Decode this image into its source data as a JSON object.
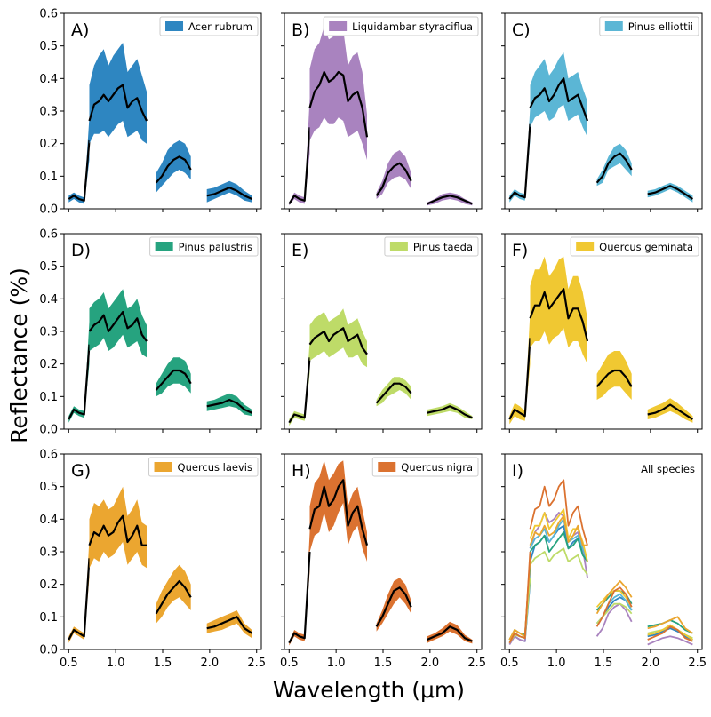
{
  "figure": {
    "xlabel": "Wavelength (μm)",
    "ylabel": "Reflectance (%)"
  },
  "chart_data": {
    "type": "area",
    "xlim": [
      0.45,
      2.55
    ],
    "ylim": [
      0,
      0.6
    ],
    "xticks": [
      0.5,
      1.0,
      1.5,
      2.0,
      2.5
    ],
    "xtick_labels": [
      "0.5",
      "1.0",
      "1.5",
      "2.0",
      "2.5"
    ],
    "yticks": [
      0.0,
      0.1,
      0.2,
      0.3,
      0.4,
      0.5,
      0.6
    ],
    "ytick_labels": [
      "0.0",
      "0.1",
      "0.2",
      "0.3",
      "0.4",
      "0.5",
      "0.6"
    ],
    "legend_placement": "upper-right",
    "mean_line_color": "#000000",
    "segments": [
      [
        0.5,
        0.72
      ],
      [
        0.72,
        1.33
      ],
      [
        1.43,
        1.8
      ],
      [
        1.97,
        2.45
      ]
    ],
    "panels": [
      {
        "label": "A)",
        "name": "Acer rubrum",
        "color": "#2e86c1",
        "mean": [
          0.03,
          0.04,
          0.03,
          0.025,
          0.21,
          0.27,
          0.32,
          0.33,
          0.35,
          0.33,
          0.35,
          0.37,
          0.38,
          0.31,
          0.33,
          0.34,
          0.3,
          0.27,
          0.08,
          0.1,
          0.13,
          0.15,
          0.16,
          0.15,
          0.12,
          0.04,
          0.045,
          0.055,
          0.065,
          0.055,
          0.04,
          0.03
        ],
        "upper": [
          0.04,
          0.05,
          0.04,
          0.035,
          0.28,
          0.38,
          0.44,
          0.47,
          0.49,
          0.44,
          0.47,
          0.49,
          0.51,
          0.42,
          0.44,
          0.46,
          0.41,
          0.36,
          0.11,
          0.14,
          0.18,
          0.2,
          0.21,
          0.2,
          0.16,
          0.06,
          0.065,
          0.075,
          0.085,
          0.075,
          0.055,
          0.04
        ],
        "lower": [
          0.02,
          0.03,
          0.02,
          0.015,
          0.15,
          0.2,
          0.23,
          0.23,
          0.24,
          0.22,
          0.24,
          0.26,
          0.27,
          0.22,
          0.23,
          0.24,
          0.21,
          0.2,
          0.05,
          0.07,
          0.09,
          0.11,
          0.12,
          0.11,
          0.09,
          0.02,
          0.03,
          0.04,
          0.05,
          0.04,
          0.025,
          0.02
        ]
      },
      {
        "label": "B)",
        "name": "Liquidambar styraciflua",
        "color": "#a983bf",
        "mean": [
          0.015,
          0.04,
          0.03,
          0.025,
          0.25,
          0.31,
          0.36,
          0.38,
          0.42,
          0.39,
          0.4,
          0.42,
          0.41,
          0.33,
          0.35,
          0.36,
          0.31,
          0.22,
          0.04,
          0.065,
          0.11,
          0.13,
          0.14,
          0.12,
          0.085,
          0.015,
          0.025,
          0.035,
          0.04,
          0.035,
          0.025,
          0.015
        ],
        "upper": [
          0.02,
          0.05,
          0.04,
          0.035,
          0.34,
          0.43,
          0.49,
          0.51,
          0.56,
          0.52,
          0.53,
          0.57,
          0.55,
          0.44,
          0.47,
          0.48,
          0.42,
          0.29,
          0.05,
          0.085,
          0.14,
          0.17,
          0.18,
          0.16,
          0.11,
          0.02,
          0.03,
          0.045,
          0.05,
          0.045,
          0.03,
          0.02
        ],
        "lower": [
          0.01,
          0.03,
          0.02,
          0.015,
          0.17,
          0.21,
          0.24,
          0.25,
          0.28,
          0.26,
          0.26,
          0.28,
          0.27,
          0.22,
          0.23,
          0.24,
          0.2,
          0.15,
          0.03,
          0.045,
          0.08,
          0.095,
          0.1,
          0.09,
          0.06,
          0.01,
          0.015,
          0.025,
          0.03,
          0.025,
          0.015,
          0.01
        ]
      },
      {
        "label": "C)",
        "name": "Pinus elliottii",
        "color": "#5bb6d5",
        "mean": [
          0.03,
          0.05,
          0.04,
          0.035,
          0.26,
          0.31,
          0.34,
          0.35,
          0.37,
          0.33,
          0.35,
          0.38,
          0.4,
          0.33,
          0.34,
          0.35,
          0.31,
          0.27,
          0.08,
          0.1,
          0.14,
          0.16,
          0.17,
          0.15,
          0.12,
          0.045,
          0.05,
          0.06,
          0.07,
          0.06,
          0.045,
          0.03
        ],
        "upper": [
          0.04,
          0.06,
          0.05,
          0.045,
          0.31,
          0.38,
          0.42,
          0.44,
          0.46,
          0.41,
          0.43,
          0.46,
          0.48,
          0.4,
          0.41,
          0.42,
          0.37,
          0.33,
          0.09,
          0.12,
          0.16,
          0.19,
          0.2,
          0.18,
          0.14,
          0.055,
          0.06,
          0.07,
          0.08,
          0.07,
          0.055,
          0.04
        ],
        "lower": [
          0.02,
          0.04,
          0.03,
          0.025,
          0.21,
          0.25,
          0.28,
          0.29,
          0.3,
          0.27,
          0.28,
          0.31,
          0.32,
          0.27,
          0.28,
          0.29,
          0.25,
          0.22,
          0.07,
          0.08,
          0.12,
          0.13,
          0.14,
          0.12,
          0.1,
          0.035,
          0.04,
          0.05,
          0.06,
          0.05,
          0.035,
          0.02
        ]
      },
      {
        "label": "D)",
        "name": "Pinus palustris",
        "color": "#26a37f",
        "mean": [
          0.03,
          0.06,
          0.05,
          0.045,
          0.26,
          0.3,
          0.32,
          0.33,
          0.35,
          0.3,
          0.32,
          0.34,
          0.36,
          0.31,
          0.32,
          0.34,
          0.29,
          0.27,
          0.12,
          0.14,
          0.16,
          0.18,
          0.18,
          0.17,
          0.14,
          0.07,
          0.075,
          0.08,
          0.09,
          0.08,
          0.06,
          0.05
        ],
        "upper": [
          0.04,
          0.07,
          0.06,
          0.055,
          0.33,
          0.37,
          0.39,
          0.4,
          0.42,
          0.37,
          0.39,
          0.41,
          0.43,
          0.37,
          0.38,
          0.4,
          0.35,
          0.32,
          0.14,
          0.17,
          0.2,
          0.22,
          0.22,
          0.21,
          0.17,
          0.085,
          0.09,
          0.1,
          0.11,
          0.1,
          0.075,
          0.06
        ],
        "lower": [
          0.02,
          0.05,
          0.04,
          0.035,
          0.2,
          0.24,
          0.25,
          0.26,
          0.28,
          0.24,
          0.25,
          0.27,
          0.29,
          0.25,
          0.26,
          0.27,
          0.23,
          0.22,
          0.1,
          0.11,
          0.13,
          0.14,
          0.14,
          0.13,
          0.11,
          0.055,
          0.06,
          0.065,
          0.07,
          0.065,
          0.045,
          0.04
        ]
      },
      {
        "label": "E)",
        "name": "Pinus taeda",
        "color": "#bedb68",
        "mean": [
          0.02,
          0.045,
          0.04,
          0.035,
          0.22,
          0.26,
          0.28,
          0.29,
          0.3,
          0.27,
          0.29,
          0.3,
          0.31,
          0.27,
          0.28,
          0.29,
          0.25,
          0.23,
          0.08,
          0.1,
          0.12,
          0.14,
          0.14,
          0.13,
          0.11,
          0.05,
          0.055,
          0.06,
          0.07,
          0.06,
          0.045,
          0.035
        ],
        "upper": [
          0.03,
          0.055,
          0.05,
          0.045,
          0.27,
          0.32,
          0.34,
          0.35,
          0.36,
          0.33,
          0.34,
          0.35,
          0.37,
          0.32,
          0.33,
          0.34,
          0.3,
          0.27,
          0.09,
          0.12,
          0.14,
          0.16,
          0.16,
          0.15,
          0.13,
          0.06,
          0.065,
          0.07,
          0.08,
          0.07,
          0.055,
          0.04
        ],
        "lower": [
          0.01,
          0.035,
          0.03,
          0.025,
          0.17,
          0.21,
          0.22,
          0.23,
          0.24,
          0.22,
          0.23,
          0.24,
          0.25,
          0.22,
          0.22,
          0.23,
          0.2,
          0.19,
          0.07,
          0.08,
          0.1,
          0.11,
          0.12,
          0.11,
          0.09,
          0.04,
          0.045,
          0.05,
          0.055,
          0.05,
          0.035,
          0.03
        ]
      },
      {
        "label": "F)",
        "name": "Quercus geminata",
        "color": "#f0c832",
        "mean": [
          0.03,
          0.06,
          0.05,
          0.04,
          0.28,
          0.34,
          0.38,
          0.38,
          0.42,
          0.37,
          0.39,
          0.41,
          0.43,
          0.34,
          0.37,
          0.37,
          0.33,
          0.27,
          0.13,
          0.15,
          0.17,
          0.18,
          0.18,
          0.16,
          0.13,
          0.045,
          0.05,
          0.06,
          0.075,
          0.06,
          0.045,
          0.03
        ],
        "upper": [
          0.04,
          0.08,
          0.07,
          0.055,
          0.36,
          0.44,
          0.49,
          0.49,
          0.53,
          0.47,
          0.49,
          0.52,
          0.53,
          0.43,
          0.47,
          0.47,
          0.42,
          0.34,
          0.17,
          0.2,
          0.23,
          0.24,
          0.24,
          0.21,
          0.17,
          0.06,
          0.07,
          0.08,
          0.095,
          0.08,
          0.06,
          0.04
        ],
        "lower": [
          0.015,
          0.04,
          0.03,
          0.025,
          0.2,
          0.25,
          0.27,
          0.27,
          0.3,
          0.26,
          0.28,
          0.29,
          0.31,
          0.25,
          0.27,
          0.27,
          0.23,
          0.2,
          0.09,
          0.1,
          0.12,
          0.13,
          0.13,
          0.11,
          0.09,
          0.03,
          0.035,
          0.045,
          0.055,
          0.045,
          0.03,
          0.02
        ]
      },
      {
        "label": "G)",
        "name": "Quercus laevis",
        "color": "#eba630",
        "mean": [
          0.03,
          0.06,
          0.05,
          0.04,
          0.28,
          0.32,
          0.36,
          0.35,
          0.38,
          0.35,
          0.36,
          0.39,
          0.41,
          0.33,
          0.35,
          0.38,
          0.32,
          0.32,
          0.11,
          0.14,
          0.17,
          0.19,
          0.21,
          0.19,
          0.16,
          0.065,
          0.07,
          0.08,
          0.09,
          0.1,
          0.065,
          0.05
        ],
        "upper": [
          0.04,
          0.07,
          0.06,
          0.05,
          0.34,
          0.4,
          0.45,
          0.44,
          0.46,
          0.43,
          0.44,
          0.47,
          0.5,
          0.41,
          0.43,
          0.46,
          0.39,
          0.38,
          0.14,
          0.18,
          0.21,
          0.24,
          0.26,
          0.24,
          0.2,
          0.08,
          0.09,
          0.1,
          0.11,
          0.12,
          0.08,
          0.06
        ],
        "lower": [
          0.02,
          0.05,
          0.04,
          0.03,
          0.22,
          0.25,
          0.28,
          0.27,
          0.3,
          0.28,
          0.29,
          0.31,
          0.33,
          0.26,
          0.28,
          0.3,
          0.26,
          0.25,
          0.08,
          0.1,
          0.13,
          0.15,
          0.16,
          0.14,
          0.12,
          0.05,
          0.055,
          0.06,
          0.07,
          0.08,
          0.05,
          0.035
        ]
      },
      {
        "label": "H)",
        "name": "Quercus nigra",
        "color": "#db7230",
        "mean": [
          0.02,
          0.05,
          0.04,
          0.035,
          0.3,
          0.37,
          0.43,
          0.44,
          0.5,
          0.44,
          0.46,
          0.5,
          0.52,
          0.38,
          0.42,
          0.44,
          0.37,
          0.32,
          0.07,
          0.1,
          0.14,
          0.18,
          0.19,
          0.17,
          0.13,
          0.03,
          0.04,
          0.05,
          0.07,
          0.06,
          0.035,
          0.025
        ],
        "upper": [
          0.025,
          0.06,
          0.05,
          0.045,
          0.36,
          0.44,
          0.51,
          0.53,
          0.58,
          0.52,
          0.54,
          0.57,
          0.58,
          0.44,
          0.48,
          0.5,
          0.43,
          0.36,
          0.08,
          0.12,
          0.17,
          0.21,
          0.22,
          0.2,
          0.15,
          0.04,
          0.05,
          0.065,
          0.085,
          0.075,
          0.045,
          0.03
        ],
        "lower": [
          0.012,
          0.04,
          0.03,
          0.025,
          0.24,
          0.3,
          0.35,
          0.36,
          0.42,
          0.36,
          0.38,
          0.42,
          0.45,
          0.32,
          0.36,
          0.38,
          0.31,
          0.27,
          0.055,
          0.08,
          0.11,
          0.14,
          0.16,
          0.14,
          0.11,
          0.02,
          0.03,
          0.04,
          0.055,
          0.045,
          0.025,
          0.018
        ]
      }
    ],
    "summary_panel": {
      "label": "I)",
      "name": "All species"
    }
  }
}
